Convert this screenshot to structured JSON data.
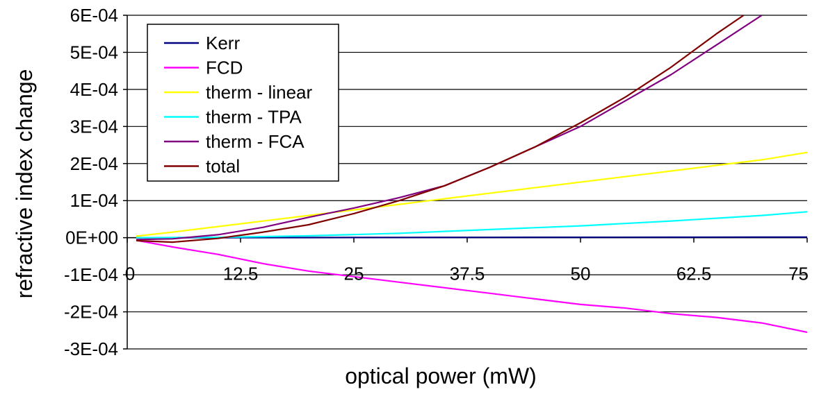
{
  "chart_data": {
    "type": "line",
    "xlabel": "optical power (mW)",
    "ylabel": "refractive index change",
    "xlim": [
      0,
      75
    ],
    "ylim": [
      -0.0003,
      0.0006
    ],
    "x_ticks": [
      "0",
      "12.5",
      "25",
      "37.5",
      "50",
      "62.5",
      "75"
    ],
    "x_tick_values": [
      0,
      12.5,
      25,
      37.5,
      50,
      62.5,
      75
    ],
    "y_ticks": [
      "-3E-04",
      "-2E-04",
      "-1E-04",
      "0E+00",
      "1E-04",
      "2E-04",
      "3E-04",
      "4E-04",
      "5E-04",
      "6E-04"
    ],
    "y_tick_values": [
      -0.0003,
      -0.0002,
      -0.0001,
      0,
      0.0001,
      0.0002,
      0.0003,
      0.0004,
      0.0005,
      0.0006
    ],
    "grid": "horizontal",
    "legend_position": "top-left",
    "series": [
      {
        "name": "Kerr",
        "color": "#000080",
        "x": [
          1,
          10,
          20,
          30,
          40,
          50,
          60,
          70,
          75
        ],
        "y": [
          0,
          2e-07,
          4e-07,
          6e-07,
          8e-07,
          1e-06,
          1.2e-06,
          1.4e-06,
          1.5e-06
        ]
      },
      {
        "name": "FCD",
        "color": "#ff00ff",
        "x": [
          1,
          5,
          10,
          15,
          20,
          25,
          30,
          35,
          40,
          45,
          50,
          55,
          60,
          65,
          70,
          75
        ],
        "y": [
          -7e-06,
          -2.5e-05,
          -4.5e-05,
          -7e-05,
          -9e-05,
          -0.000105,
          -0.00012,
          -0.000135,
          -0.00015,
          -0.000165,
          -0.00018,
          -0.00019,
          -0.000205,
          -0.000215,
          -0.00023,
          -0.000255
        ]
      },
      {
        "name": "therm - linear",
        "color": "#ffff00",
        "x": [
          1,
          5,
          10,
          15,
          20,
          25,
          30,
          35,
          40,
          45,
          50,
          55,
          60,
          65,
          70,
          75
        ],
        "y": [
          4e-06,
          1.5e-05,
          3e-05,
          4.5e-05,
          6e-05,
          7.5e-05,
          9e-05,
          0.000105,
          0.00012,
          0.000135,
          0.00015,
          0.000165,
          0.00018,
          0.000195,
          0.00021,
          0.00023
        ]
      },
      {
        "name": "therm - TPA",
        "color": "#00ffff",
        "x": [
          1,
          10,
          20,
          30,
          40,
          50,
          60,
          70,
          75
        ],
        "y": [
          0,
          1e-06,
          5e-06,
          1.2e-05,
          2.2e-05,
          3.2e-05,
          4.5e-05,
          6e-05,
          7e-05
        ]
      },
      {
        "name": "therm - FCA",
        "color": "#800080",
        "x": [
          1,
          5,
          10,
          15,
          20,
          25,
          30,
          35,
          40,
          45,
          50,
          55,
          60,
          65,
          70
        ],
        "y": [
          -5e-06,
          -3e-06,
          8e-06,
          2.8e-05,
          5.5e-05,
          8e-05,
          0.000108,
          0.00014,
          0.00019,
          0.000245,
          0.0003,
          0.00037,
          0.00044,
          0.00052,
          0.0006
        ]
      },
      {
        "name": "total",
        "color": "#800000",
        "x": [
          1,
          5,
          10,
          15,
          20,
          25,
          30,
          35,
          40,
          45,
          50,
          55,
          60,
          65,
          68
        ],
        "y": [
          -8e-06,
          -1.2e-05,
          -2e-06,
          1.5e-05,
          3.5e-05,
          6.5e-05,
          0.0001,
          0.00014,
          0.00019,
          0.000245,
          0.00031,
          0.00038,
          0.00046,
          0.00055,
          0.0006
        ]
      }
    ]
  }
}
